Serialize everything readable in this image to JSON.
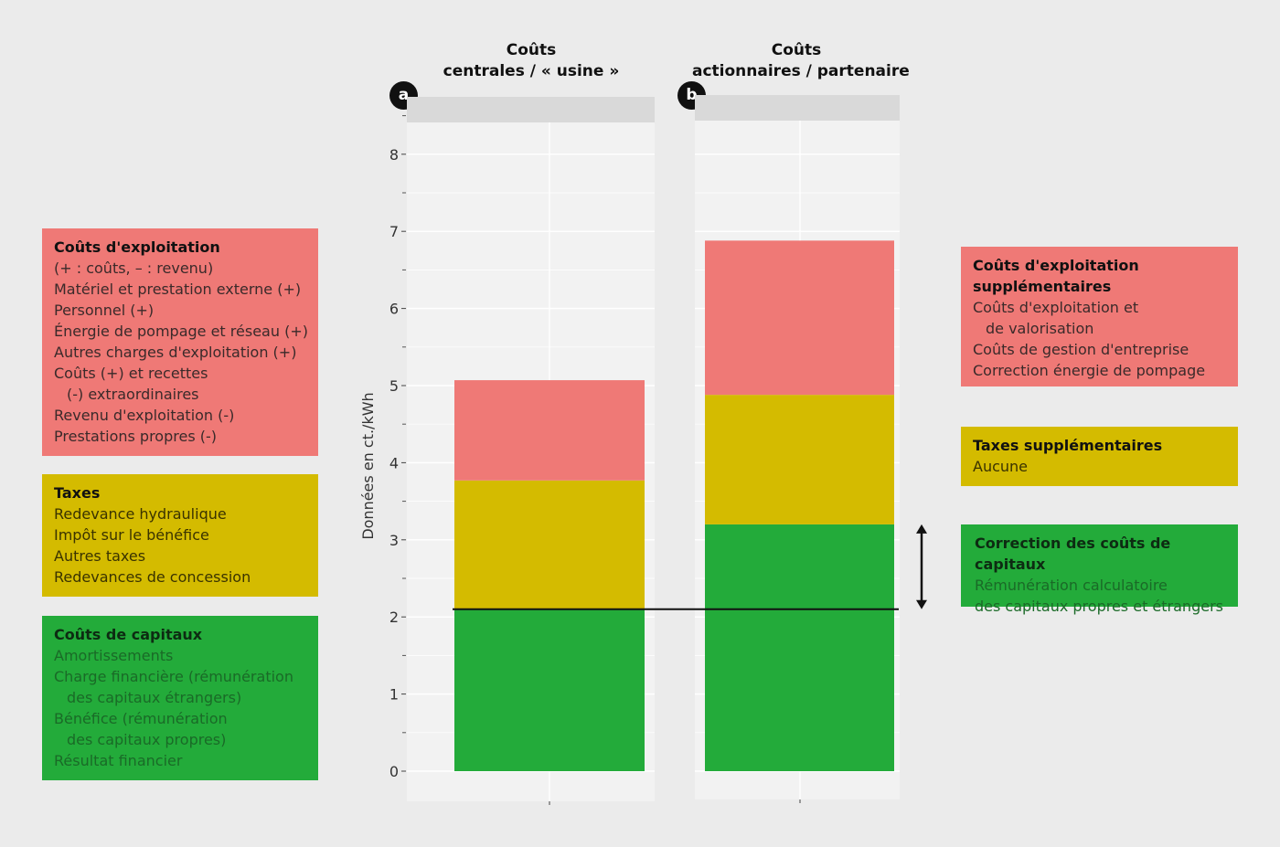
{
  "panels": [
    {
      "letter": "a",
      "title_line1": "Coûts",
      "title_line2": "centrales / « usine »"
    },
    {
      "letter": "b",
      "title_line1": "Coûts",
      "title_line2": "actionnaires / partenaire"
    }
  ],
  "legend_left": [
    {
      "title": "Coûts d'exploitation",
      "lines": [
        "(+ : coûts, – : revenu)",
        "Matériel et prestation externe (+)",
        "Personnel (+)",
        "Énergie de pompage et réseau (+)",
        "Autres charges d'exploitation (+)",
        "Coûts (+) et recettes",
        "(-) extraordinaires",
        "Revenu d'exploitation (-)",
        "Prestations propres (-)"
      ]
    },
    {
      "title": "Taxes",
      "lines": [
        "Redevance hydraulique",
        "Impôt sur le bénéfice",
        "Autres taxes",
        "Redevances de concession"
      ]
    },
    {
      "title": "Coûts de capitaux",
      "lines": [
        "Amortissements",
        "Charge financière (rémunération",
        "des capitaux étrangers)",
        "Bénéfice (rémunération",
        "des capitaux propres)",
        "Résultat financier"
      ]
    }
  ],
  "legend_right": [
    {
      "title_line1": "Coûts d'exploitation",
      "title_line2": "supplémentaires",
      "lines": [
        "Coûts d'exploitation et",
        "de valorisation",
        "Coûts de gestion d'entreprise",
        "Correction énergie de pompage"
      ]
    },
    {
      "title": "Taxes supplémentaires",
      "lines": [
        "Aucune"
      ]
    },
    {
      "title": "Correction des coûts de capitaux",
      "lines": [
        "Rémunération calculatoire",
        "des capitaux propres et étrangers"
      ]
    }
  ],
  "chart_data": {
    "type": "bar",
    "stacked": true,
    "ylabel": "Données en ct./kWh",
    "ylim": [
      0,
      8.6
    ],
    "yticks": [
      0,
      1,
      2,
      3,
      4,
      5,
      6,
      7,
      8
    ],
    "categories": [
      "Coûts centrales / « usine »",
      "Coûts actionnaires / partenaire"
    ],
    "series": [
      {
        "name": "Coûts de capitaux",
        "color": "#23ab3a",
        "values": [
          2.1,
          3.2
        ]
      },
      {
        "name": "Taxes",
        "color": "#d4bb00",
        "values": [
          1.67,
          1.68
        ]
      },
      {
        "name": "Coûts d'exploitation",
        "color": "#ef7976",
        "values": [
          1.3,
          2.0
        ]
      }
    ],
    "reference_line": 2.1,
    "arrow_range": [
      2.1,
      3.2
    ],
    "colors": {
      "panel_bg": "#f2f2f2",
      "strip_bg": "#d9d9d9",
      "page_bg": "#ebebeb"
    }
  }
}
